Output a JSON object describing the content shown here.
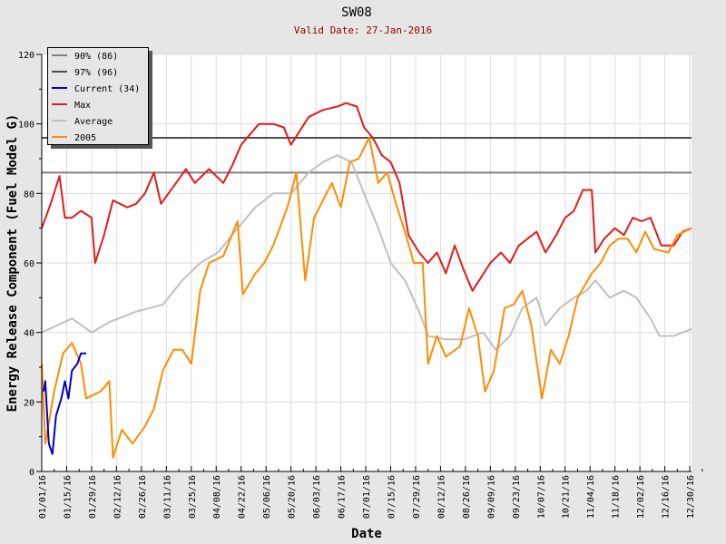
{
  "chart_data": {
    "type": "line",
    "title": "SW08",
    "subtitle": "Valid Date: 27-Jan-2016",
    "xlabel": "Date",
    "ylabel": "Energy Release Component (Fuel Model G)",
    "ylim": [
      0,
      120
    ],
    "yticks": [
      "0",
      "20",
      "40",
      "60",
      "80",
      "100",
      "120"
    ],
    "xlim_days": [
      0,
      365
    ],
    "xticks": [
      "01/01/16",
      "01/15/16",
      "01/29/16",
      "02/12/16",
      "02/26/16",
      "03/11/16",
      "03/25/16",
      "04/08/16",
      "04/22/16",
      "05/06/16",
      "05/20/16",
      "06/03/16",
      "06/17/16",
      "07/01/16",
      "07/15/16",
      "07/29/16",
      "08/12/16",
      "08/26/16",
      "09/09/16",
      "09/23/16",
      "10/07/16",
      "10/21/16",
      "11/04/16",
      "11/18/16",
      "12/02/16",
      "12/16/16",
      "12/30/16"
    ],
    "grid": true,
    "legend_position": "top-left",
    "thresholds": [
      {
        "name": "90% (86)",
        "value": 86,
        "color": "#808080"
      },
      {
        "name": "97% (96)",
        "value": 96,
        "color": "#505050"
      }
    ],
    "series": [
      {
        "name": "Average",
        "color": "#c0c0c0",
        "points": [
          [
            0,
            40
          ],
          [
            17,
            44
          ],
          [
            28,
            40
          ],
          [
            38,
            43
          ],
          [
            53,
            46
          ],
          [
            68,
            48
          ],
          [
            79,
            55
          ],
          [
            89,
            60
          ],
          [
            99,
            63
          ],
          [
            110,
            70
          ],
          [
            120,
            76
          ],
          [
            130,
            80
          ],
          [
            140,
            80
          ],
          [
            150,
            86
          ],
          [
            158,
            89
          ],
          [
            166,
            91
          ],
          [
            174,
            89
          ],
          [
            181,
            80
          ],
          [
            189,
            70
          ],
          [
            196,
            60
          ],
          [
            204,
            55
          ],
          [
            212,
            46
          ],
          [
            217,
            39
          ],
          [
            227,
            38
          ],
          [
            237,
            38
          ],
          [
            248,
            40
          ],
          [
            255,
            35
          ],
          [
            263,
            39
          ],
          [
            270,
            47
          ],
          [
            278,
            50
          ],
          [
            283,
            42
          ],
          [
            291,
            47
          ],
          [
            299,
            50
          ],
          [
            306,
            52
          ],
          [
            311,
            55
          ],
          [
            319,
            50
          ],
          [
            327,
            52
          ],
          [
            334,
            50
          ],
          [
            342,
            44
          ],
          [
            347,
            39
          ],
          [
            355,
            39
          ],
          [
            365,
            41
          ]
        ]
      },
      {
        "name": "Max",
        "color": "#e31a1c",
        "points": [
          [
            0,
            70
          ],
          [
            5,
            77
          ],
          [
            10,
            85
          ],
          [
            13,
            73
          ],
          [
            17,
            73
          ],
          [
            22,
            75
          ],
          [
            28,
            73
          ],
          [
            30,
            60
          ],
          [
            35,
            68
          ],
          [
            40,
            78
          ],
          [
            48,
            76
          ],
          [
            53,
            77
          ],
          [
            58,
            80
          ],
          [
            63,
            86
          ],
          [
            67,
            77
          ],
          [
            74,
            82
          ],
          [
            81,
            87
          ],
          [
            86,
            83
          ],
          [
            94,
            87
          ],
          [
            102,
            83
          ],
          [
            107,
            88
          ],
          [
            112,
            94
          ],
          [
            117,
            97
          ],
          [
            122,
            100
          ],
          [
            130,
            100
          ],
          [
            136,
            99
          ],
          [
            140,
            94
          ],
          [
            145,
            98
          ],
          [
            150,
            102
          ],
          [
            158,
            104
          ],
          [
            166,
            105
          ],
          [
            171,
            106
          ],
          [
            177,
            105
          ],
          [
            181,
            99
          ],
          [
            186,
            96
          ],
          [
            191,
            91
          ],
          [
            196,
            89
          ],
          [
            201,
            83
          ],
          [
            206,
            68
          ],
          [
            212,
            63
          ],
          [
            217,
            60
          ],
          [
            222,
            63
          ],
          [
            227,
            57
          ],
          [
            232,
            65
          ],
          [
            237,
            58
          ],
          [
            242,
            52
          ],
          [
            247,
            56
          ],
          [
            252,
            60
          ],
          [
            258,
            63
          ],
          [
            263,
            60
          ],
          [
            268,
            65
          ],
          [
            273,
            67
          ],
          [
            278,
            69
          ],
          [
            283,
            63
          ],
          [
            289,
            68
          ],
          [
            294,
            73
          ],
          [
            299,
            75
          ],
          [
            304,
            81
          ],
          [
            309,
            81
          ],
          [
            311,
            63
          ],
          [
            316,
            67
          ],
          [
            322,
            70
          ],
          [
            327,
            68
          ],
          [
            332,
            73
          ],
          [
            337,
            72
          ],
          [
            342,
            73
          ],
          [
            348,
            65
          ],
          [
            355,
            65
          ],
          [
            360,
            69
          ],
          [
            365,
            70
          ]
        ]
      },
      {
        "name": "2005",
        "color": "#ff8c00",
        "points": [
          [
            0,
            31
          ],
          [
            2,
            8
          ],
          [
            7,
            23
          ],
          [
            12,
            34
          ],
          [
            17,
            37
          ],
          [
            22,
            31
          ],
          [
            25,
            21
          ],
          [
            33,
            23
          ],
          [
            38,
            26
          ],
          [
            40,
            4
          ],
          [
            45,
            12
          ],
          [
            51,
            8
          ],
          [
            58,
            13
          ],
          [
            63,
            18
          ],
          [
            68,
            29
          ],
          [
            74,
            35
          ],
          [
            79,
            35
          ],
          [
            84,
            31
          ],
          [
            89,
            52
          ],
          [
            94,
            60
          ],
          [
            102,
            62
          ],
          [
            110,
            72
          ],
          [
            113,
            51
          ],
          [
            120,
            57
          ],
          [
            125,
            60
          ],
          [
            130,
            65
          ],
          [
            138,
            76
          ],
          [
            143,
            86
          ],
          [
            148,
            55
          ],
          [
            153,
            73
          ],
          [
            158,
            78
          ],
          [
            163,
            83
          ],
          [
            168,
            76
          ],
          [
            173,
            89
          ],
          [
            178,
            90
          ],
          [
            184,
            96
          ],
          [
            189,
            83
          ],
          [
            194,
            86
          ],
          [
            199,
            77
          ],
          [
            204,
            69
          ],
          [
            209,
            60
          ],
          [
            214,
            60
          ],
          [
            217,
            31
          ],
          [
            222,
            39
          ],
          [
            227,
            33
          ],
          [
            235,
            36
          ],
          [
            240,
            47
          ],
          [
            245,
            39
          ],
          [
            249,
            23
          ],
          [
            254,
            29
          ],
          [
            260,
            47
          ],
          [
            265,
            48
          ],
          [
            270,
            52
          ],
          [
            275,
            42
          ],
          [
            281,
            21
          ],
          [
            286,
            35
          ],
          [
            291,
            31
          ],
          [
            296,
            39
          ],
          [
            301,
            50
          ],
          [
            309,
            57
          ],
          [
            314,
            60
          ],
          [
            319,
            65
          ],
          [
            324,
            67
          ],
          [
            329,
            67
          ],
          [
            334,
            63
          ],
          [
            339,
            69
          ],
          [
            344,
            64
          ],
          [
            352,
            63
          ],
          [
            357,
            68
          ],
          [
            365,
            70
          ]
        ]
      },
      {
        "name": "Current (34)",
        "color": "#0000cd",
        "points": [
          [
            1,
            23
          ],
          [
            2,
            26
          ],
          [
            4,
            8
          ],
          [
            6,
            5
          ],
          [
            8,
            16
          ],
          [
            11,
            21
          ],
          [
            13,
            26
          ],
          [
            15,
            21
          ],
          [
            17,
            29
          ],
          [
            20,
            31
          ],
          [
            22,
            34
          ],
          [
            25,
            34
          ]
        ]
      }
    ],
    "legend": [
      {
        "label": "90% (86)",
        "color": "#808080"
      },
      {
        "label": "97% (96)",
        "color": "#505050"
      },
      {
        "label": "Current (34)",
        "color": "#0000cd"
      },
      {
        "label": "Max",
        "color": "#e31a1c"
      },
      {
        "label": "Average",
        "color": "#c0c0c0"
      },
      {
        "label": "2005",
        "color": "#ff8c00"
      }
    ]
  }
}
